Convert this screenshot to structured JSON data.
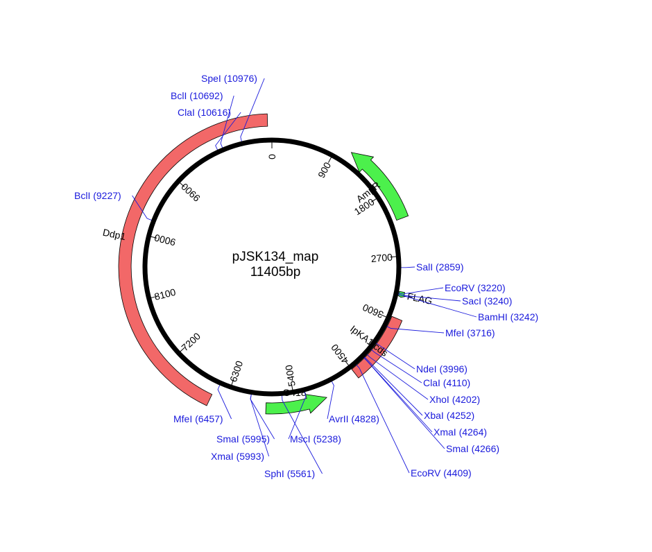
{
  "plasmid": {
    "name": "pJSK134_map",
    "size_label": "11405bp",
    "length": 11405
  },
  "colors": {
    "backbone": "#000000",
    "site": "#1a1adc",
    "marker": "#4cf04c",
    "gene": "#f26868",
    "feature_outline": "#000000"
  },
  "ticks": [
    {
      "pos": 0,
      "label": "0"
    },
    {
      "pos": 900,
      "label": "900"
    },
    {
      "pos": 1800,
      "label": "1800"
    },
    {
      "pos": 2700,
      "label": "2700"
    },
    {
      "pos": 3600,
      "label": "3600"
    },
    {
      "pos": 4500,
      "label": "4500"
    },
    {
      "pos": 5400,
      "label": "5400"
    },
    {
      "pos": 6300,
      "label": "6300"
    },
    {
      "pos": 7200,
      "label": "7200"
    },
    {
      "pos": 8100,
      "label": "8100"
    },
    {
      "pos": 9000,
      "label": "9000"
    },
    {
      "pos": 9900,
      "label": "9900"
    }
  ],
  "features": [
    {
      "id": "ampr",
      "label": "AmpR",
      "start": 1100,
      "end": 2200,
      "direction": "reverse",
      "kind": "marker"
    },
    {
      "id": "ipka1",
      "label": "IpKA1 cds",
      "start": 3560,
      "end": 4500,
      "direction": "none",
      "kind": "gene"
    },
    {
      "id": "flag",
      "label": "FLAG",
      "start": 3195,
      "end": 3270,
      "direction": "forward",
      "kind": "marker"
    },
    {
      "id": "g418",
      "label": "G418",
      "start": 4980,
      "end": 5780,
      "direction": "reverse",
      "kind": "marker"
    },
    {
      "id": "ddp1",
      "label": "Ddp1",
      "start": 6500,
      "end": 11350,
      "direction": "none",
      "kind": "gene"
    }
  ],
  "sites": [
    {
      "label": "SpeI (10976)",
      "pos": 10976
    },
    {
      "label": "BclI (10692)",
      "pos": 10692
    },
    {
      "label": "ClaI (10616)",
      "pos": 10616
    },
    {
      "label": "BclI (9227)",
      "pos": 9227
    },
    {
      "label": "SalI (2859)",
      "pos": 2859
    },
    {
      "label": "EcoRV (3220)",
      "pos": 3220
    },
    {
      "label": "SacI (3240)",
      "pos": 3240
    },
    {
      "label": "BamHI (3242)",
      "pos": 3242
    },
    {
      "label": "MfeI (3716)",
      "pos": 3716
    },
    {
      "label": "NdeI (3996)",
      "pos": 3996
    },
    {
      "label": "ClaI (4110)",
      "pos": 4110
    },
    {
      "label": "XhoI (4202)",
      "pos": 4202
    },
    {
      "label": "XbaI (4252)",
      "pos": 4252
    },
    {
      "label": "XmaI (4264)",
      "pos": 4264
    },
    {
      "label": "SmaI (4266)",
      "pos": 4266
    },
    {
      "label": "EcoRV (4409)",
      "pos": 4409
    },
    {
      "label": "AvrII (4828)",
      "pos": 4828
    },
    {
      "label": "MscI (5238)",
      "pos": 5238
    },
    {
      "label": "SphI (5561)",
      "pos": 5561
    },
    {
      "label": "XmaI (5993)",
      "pos": 5993
    },
    {
      "label": "SmaI (5995)",
      "pos": 5995
    },
    {
      "label": "MfeI (6457)",
      "pos": 6457
    }
  ]
}
